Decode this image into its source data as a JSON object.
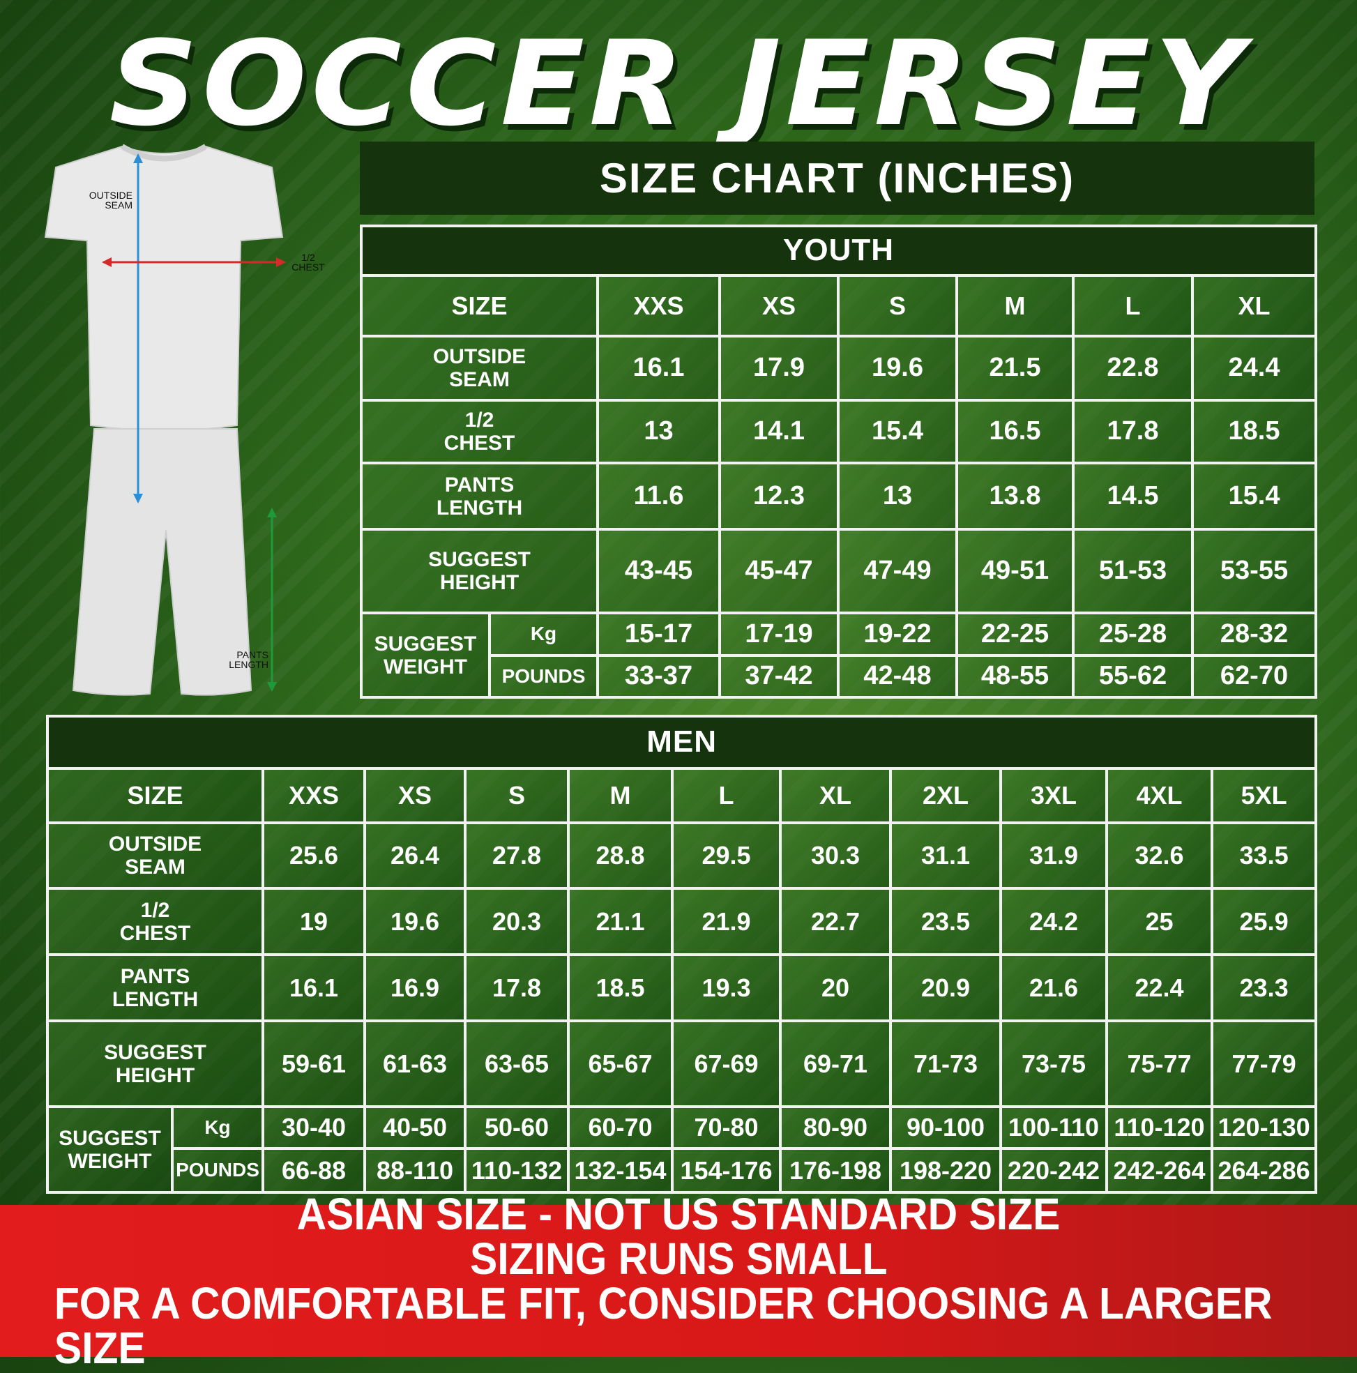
{
  "title": "SOCCER JERSEY",
  "chart_banner": "SIZE CHART (INCHES)",
  "figure": {
    "outside_seam_label": [
      "OUTSIDE",
      "SEAM"
    ],
    "half_chest_label": [
      "1/2",
      "CHEST"
    ],
    "pants_length_label": [
      "PANTS",
      "LENGTH"
    ],
    "colors": {
      "outside_seam": "#2a8fd6",
      "half_chest": "#d62a2a",
      "pants_length": "#1f9a3a"
    }
  },
  "youth": {
    "title": "YOUTH",
    "size_label": "SIZE",
    "sizes": [
      "XXS",
      "XS",
      "S",
      "M",
      "L",
      "XL"
    ],
    "rows": [
      {
        "label": [
          "OUTSIDE",
          "SEAM"
        ],
        "values": [
          "16.1",
          "17.9",
          "19.6",
          "21.5",
          "22.8",
          "24.4"
        ]
      },
      {
        "label": [
          "1/2",
          "CHEST"
        ],
        "values": [
          "13",
          "14.1",
          "15.4",
          "16.5",
          "17.8",
          "18.5"
        ]
      },
      {
        "label": [
          "PANTS",
          "LENGTH"
        ],
        "values": [
          "11.6",
          "12.3",
          "13",
          "13.8",
          "14.5",
          "15.4"
        ]
      },
      {
        "label": [
          "SUGGEST",
          "HEIGHT"
        ],
        "values": [
          "43-45",
          "45-47",
          "47-49",
          "49-51",
          "51-53",
          "53-55"
        ]
      }
    ],
    "weight": {
      "label": [
        "SUGGEST",
        "WEIGHT"
      ],
      "kg_label": "Kg",
      "kg": [
        "15-17",
        "17-19",
        "19-22",
        "22-25",
        "25-28",
        "28-32"
      ],
      "lb_label": "POUNDS",
      "lb": [
        "33-37",
        "37-42",
        "42-48",
        "48-55",
        "55-62",
        "62-70"
      ]
    }
  },
  "men": {
    "title": "MEN",
    "size_label": "SIZE",
    "sizes": [
      "XXS",
      "XS",
      "S",
      "M",
      "L",
      "XL",
      "2XL",
      "3XL",
      "4XL",
      "5XL"
    ],
    "rows": [
      {
        "label": [
          "OUTSIDE",
          "SEAM"
        ],
        "values": [
          "25.6",
          "26.4",
          "27.8",
          "28.8",
          "29.5",
          "30.3",
          "31.1",
          "31.9",
          "32.6",
          "33.5"
        ]
      },
      {
        "label": [
          "1/2",
          "CHEST"
        ],
        "values": [
          "19",
          "19.6",
          "20.3",
          "21.1",
          "21.9",
          "22.7",
          "23.5",
          "24.2",
          "25",
          "25.9"
        ]
      },
      {
        "label": [
          "PANTS",
          "LENGTH"
        ],
        "values": [
          "16.1",
          "16.9",
          "17.8",
          "18.5",
          "19.3",
          "20",
          "20.9",
          "21.6",
          "22.4",
          "23.3"
        ]
      },
      {
        "label": [
          "SUGGEST",
          "HEIGHT"
        ],
        "values": [
          "59-61",
          "61-63",
          "63-65",
          "65-67",
          "67-69",
          "69-71",
          "71-73",
          "73-75",
          "75-77",
          "77-79"
        ]
      }
    ],
    "weight": {
      "label": [
        "SUGGEST",
        "WEIGHT"
      ],
      "kg_label": "Kg",
      "kg": [
        "30-40",
        "40-50",
        "50-60",
        "60-70",
        "70-80",
        "80-90",
        "90-100",
        "100-110",
        "110-120",
        "120-130"
      ],
      "lb_label": "POUNDS",
      "lb": [
        "66-88",
        "88-110",
        "110-132",
        "132-154",
        "154-176",
        "176-198",
        "198-220",
        "220-242",
        "242-264",
        "264-286"
      ]
    }
  },
  "footer": {
    "lines": [
      "ASIAN SIZE - NOT US STANDARD SIZE",
      "SIZING RUNS SMALL",
      "FOR A COMFORTABLE FIT, CONSIDER CHOOSING A LARGER SIZE"
    ]
  }
}
